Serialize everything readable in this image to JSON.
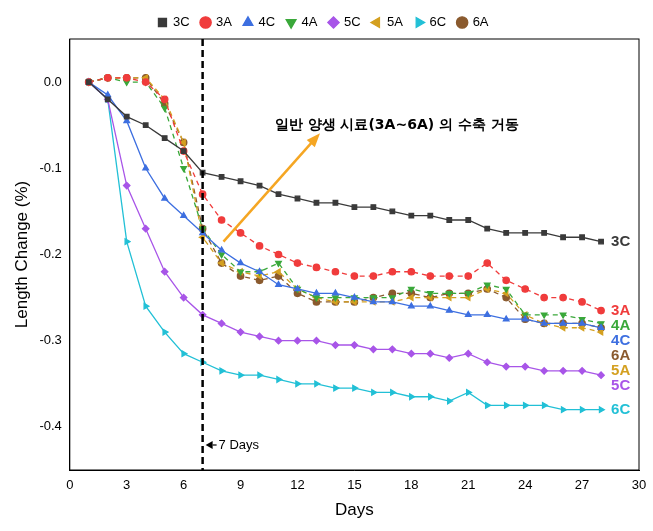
{
  "chart_data": {
    "type": "line",
    "x_label": "Days",
    "y_label": "Length Change (%)",
    "x": [
      1,
      2,
      3,
      4,
      5,
      6,
      7,
      8,
      9,
      10,
      11,
      12,
      13,
      14,
      15,
      16,
      17,
      18,
      19,
      20,
      21,
      22,
      23,
      24,
      25,
      26,
      27,
      28
    ],
    "xlim": [
      0,
      30
    ],
    "xticks": [
      0,
      3,
      6,
      9,
      12,
      15,
      18,
      21,
      24,
      27,
      30
    ],
    "ylim": [
      -0.45,
      0.05
    ],
    "yticks": [
      {
        "value": -0.4,
        "label": "-0.4"
      },
      {
        "value": -0.3,
        "label": "-0.3"
      },
      {
        "value": -0.2,
        "label": "-0.2"
      },
      {
        "value": -0.1,
        "label": "-0.1"
      },
      {
        "value": 0,
        "label": "0.0"
      }
    ],
    "grid": false,
    "legend": "top",
    "annotations": [
      {
        "text": "일반 양생 시료(3A~6A) 의 수축 거동"
      },
      {
        "text": "7 Days",
        "x": 7
      }
    ],
    "series": [
      {
        "name": "3C",
        "color": "#3a3a3a",
        "marker": "square",
        "line_style": "solid",
        "values": [
          0,
          -0.02,
          -0.04,
          -0.05,
          -0.065,
          -0.08,
          -0.105,
          -0.11,
          -0.115,
          -0.12,
          -0.13,
          -0.135,
          -0.14,
          -0.14,
          -0.145,
          -0.145,
          -0.15,
          -0.155,
          -0.155,
          -0.16,
          -0.16,
          -0.17,
          -0.175,
          -0.175,
          -0.175,
          -0.18,
          -0.18,
          -0.185
        ]
      },
      {
        "name": "3A",
        "color": "#f03c3c",
        "marker": "circle",
        "line_style": "dashed",
        "values": [
          0,
          0.005,
          0.005,
          0,
          -0.02,
          -0.08,
          -0.13,
          -0.16,
          -0.175,
          -0.19,
          -0.2,
          -0.21,
          -0.215,
          -0.22,
          -0.225,
          -0.225,
          -0.22,
          -0.22,
          -0.225,
          -0.225,
          -0.225,
          -0.21,
          -0.23,
          -0.24,
          -0.25,
          -0.25,
          -0.255,
          -0.265
        ]
      },
      {
        "name": "4C",
        "color": "#3d6fe0",
        "marker": "triangle",
        "line_style": "solid",
        "values": [
          0,
          -0.015,
          -0.045,
          -0.1,
          -0.135,
          -0.155,
          -0.175,
          -0.195,
          -0.21,
          -0.22,
          -0.235,
          -0.24,
          -0.245,
          -0.245,
          -0.25,
          -0.255,
          -0.255,
          -0.26,
          -0.26,
          -0.265,
          -0.27,
          -0.27,
          -0.275,
          -0.275,
          -0.28,
          -0.28,
          -0.28,
          -0.285
        ]
      },
      {
        "name": "4A",
        "color": "#3aa83a",
        "marker": "triangle-down",
        "line_style": "dashed",
        "values": [
          0,
          0.005,
          0,
          0,
          -0.03,
          -0.1,
          -0.17,
          -0.2,
          -0.22,
          -0.22,
          -0.21,
          -0.24,
          -0.25,
          -0.25,
          -0.25,
          -0.25,
          -0.25,
          -0.24,
          -0.245,
          -0.245,
          -0.245,
          -0.235,
          -0.24,
          -0.27,
          -0.27,
          -0.27,
          -0.275,
          -0.28
        ]
      },
      {
        "name": "5C",
        "color": "#a855e8",
        "marker": "diamond",
        "line_style": "solid",
        "values": [
          0,
          -0.02,
          -0.12,
          -0.17,
          -0.22,
          -0.25,
          -0.27,
          -0.28,
          -0.29,
          -0.295,
          -0.3,
          -0.3,
          -0.3,
          -0.305,
          -0.305,
          -0.31,
          -0.31,
          -0.315,
          -0.315,
          -0.32,
          -0.315,
          -0.325,
          -0.33,
          -0.33,
          -0.335,
          -0.335,
          -0.335,
          -0.34
        ]
      },
      {
        "name": "5A",
        "color": "#d4a020",
        "marker": "triangle-left",
        "line_style": "dashed",
        "values": [
          0,
          0.005,
          0.005,
          0.005,
          -0.02,
          -0.07,
          -0.18,
          -0.21,
          -0.22,
          -0.225,
          -0.22,
          -0.24,
          -0.25,
          -0.255,
          -0.255,
          -0.255,
          -0.255,
          -0.25,
          -0.25,
          -0.25,
          -0.25,
          -0.24,
          -0.245,
          -0.27,
          -0.28,
          -0.285,
          -0.285,
          -0.29
        ]
      },
      {
        "name": "6C",
        "color": "#22c0d6",
        "marker": "triangle-right",
        "line_style": "solid",
        "values": [
          0,
          -0.02,
          -0.185,
          -0.26,
          -0.29,
          -0.315,
          -0.325,
          -0.335,
          -0.34,
          -0.34,
          -0.345,
          -0.35,
          -0.35,
          -0.355,
          -0.355,
          -0.36,
          -0.36,
          -0.365,
          -0.365,
          -0.37,
          -0.36,
          -0.375,
          -0.375,
          -0.375,
          -0.375,
          -0.38,
          -0.38,
          -0.38
        ]
      },
      {
        "name": "6A",
        "color": "#8a5a2e",
        "marker": "hexagon",
        "line_style": "dashed",
        "values": [
          0,
          0.005,
          0.005,
          0.005,
          -0.025,
          -0.07,
          -0.17,
          -0.21,
          -0.225,
          -0.23,
          -0.225,
          -0.245,
          -0.255,
          -0.255,
          -0.255,
          -0.25,
          -0.245,
          -0.245,
          -0.25,
          -0.245,
          -0.245,
          -0.24,
          -0.25,
          -0.275,
          -0.28,
          -0.28,
          -0.28,
          -0.285
        ]
      }
    ]
  }
}
